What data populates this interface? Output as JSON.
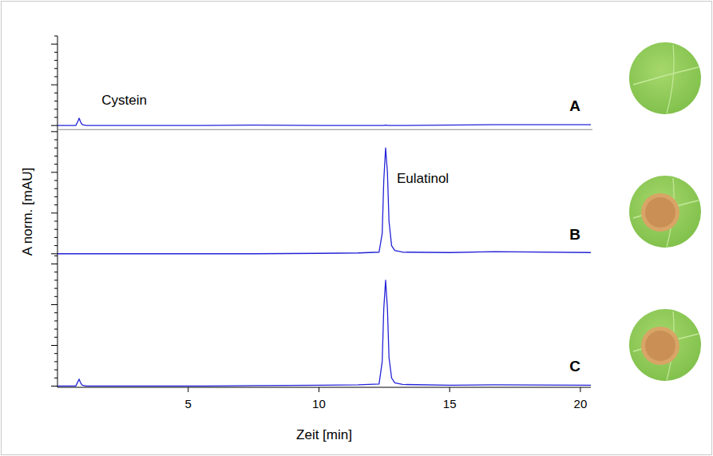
{
  "chart_data": [
    {
      "type": "line",
      "title": "A",
      "tick_labels": false,
      "grid": false,
      "annotations": [
        "Cystein"
      ],
      "x": [
        0,
        0.7,
        0.78,
        0.83,
        0.88,
        0.95,
        1.1,
        5,
        7.5,
        10,
        11.5,
        12.3,
        12.42,
        12.48,
        12.55,
        12.62,
        12.68,
        12.78,
        12.9,
        13.2,
        15,
        16.7,
        20.4
      ],
      "series": [
        {
          "color": "#2323d8",
          "values": [
            0,
            0,
            1,
            1.8,
            0.9,
            0.2,
            0,
            0,
            0.1,
            0,
            0,
            0,
            0,
            0,
            0.1,
            0,
            0,
            0,
            0,
            0,
            0.1,
            0.2,
            0.2
          ]
        }
      ],
      "ylim": [
        -1,
        22
      ],
      "yticks": [
        0,
        2,
        4,
        6,
        8,
        10,
        12,
        14,
        16,
        18,
        20,
        22
      ]
    },
    {
      "type": "line",
      "title": "B",
      "tick_labels": false,
      "grid": false,
      "annotations": [
        "Eulatinol"
      ],
      "ylabel": "A norm. [mAU]",
      "x": [
        0,
        0.7,
        0.78,
        0.83,
        0.88,
        0.95,
        1.1,
        5,
        7.5,
        10,
        11.5,
        12.3,
        12.42,
        12.48,
        12.55,
        12.62,
        12.68,
        12.78,
        12.9,
        13.2,
        15,
        16.7,
        20.4
      ],
      "series": [
        {
          "color": "#2323d8",
          "values": [
            0,
            0,
            0,
            0,
            0,
            0,
            0,
            0,
            0,
            0.1,
            0.2,
            0.4,
            5,
            18,
            26,
            20,
            8,
            2,
            0.8,
            0.4,
            0.3,
            0.5,
            0.3
          ]
        }
      ],
      "ylim": [
        -0.5,
        30.5
      ],
      "yticks": [
        0,
        2,
        4,
        6,
        8,
        10,
        12,
        14,
        16,
        18,
        20,
        22,
        24,
        26,
        28,
        30
      ]
    },
    {
      "type": "line",
      "title": "C",
      "tick_labels": "x",
      "grid": false,
      "xlabel": "Zeit [min]",
      "xlim": [
        0,
        20.4
      ],
      "xticks": [
        5,
        10,
        15,
        20
      ],
      "x": [
        0,
        0.7,
        0.78,
        0.83,
        0.88,
        0.95,
        1.1,
        5,
        7.5,
        10,
        11.5,
        12.3,
        12.42,
        12.48,
        12.55,
        12.62,
        12.68,
        12.78,
        12.9,
        13.2,
        15,
        16.7,
        20.4
      ],
      "series": [
        {
          "color": "#2323d8",
          "values": [
            0,
            0,
            1.1,
            1.7,
            0.8,
            0.2,
            0,
            0,
            0.1,
            0.2,
            0.3,
            0.5,
            6,
            19,
            26,
            19,
            7,
            2,
            0.8,
            0.4,
            0.2,
            0.3,
            0.2
          ]
        }
      ],
      "ylim": [
        -0.3,
        32
      ],
      "yticks": [
        0,
        2,
        4,
        6,
        8,
        10,
        12,
        14,
        16,
        18,
        20,
        22,
        24,
        26,
        28,
        30,
        32
      ]
    }
  ]
}
